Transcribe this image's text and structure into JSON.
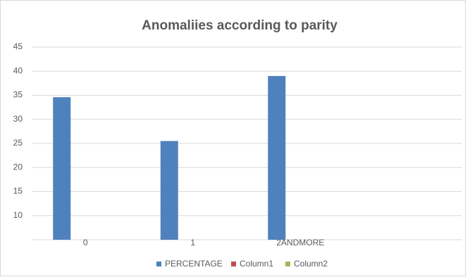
{
  "chart_data": {
    "type": "bar",
    "title": "Anomaliies according to parity",
    "categories": [
      "0",
      "1",
      "2ANDMORE",
      null
    ],
    "series": [
      {
        "name": "PERCENTAGE",
        "color": "#4f81bd",
        "values": [
          34.6,
          25.5,
          39,
          null
        ]
      },
      {
        "name": "Column1",
        "color": "#c0504d",
        "values": [
          null,
          null,
          null,
          null
        ]
      },
      {
        "name": "Column2",
        "color": "#9bbb59",
        "values": [
          null,
          null,
          null,
          null
        ]
      }
    ],
    "ylim": [
      5,
      45
    ],
    "yticks": [
      10,
      15,
      20,
      25,
      30,
      35,
      40,
      45
    ],
    "grid": true,
    "legend": "bottom"
  }
}
